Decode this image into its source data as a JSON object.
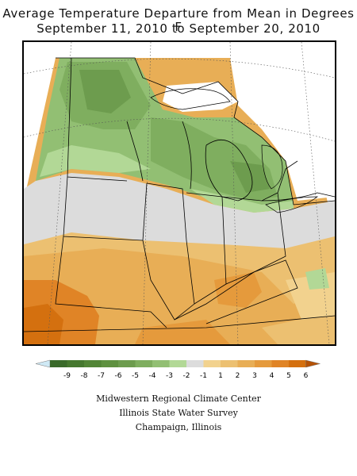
{
  "title": "Average Temperature Departure from Mean in Degrees F",
  "subtitle": "September 11, 2010 to September 20, 2010",
  "legend": {
    "low_color": "#cfe9f5",
    "high_color": "#b45206",
    "bins": [
      {
        "label": "-9",
        "color": "#3a6a2a"
      },
      {
        "label": "-8",
        "color": "#46782f"
      },
      {
        "label": "-7",
        "color": "#528536"
      },
      {
        "label": "-6",
        "color": "#5f9140"
      },
      {
        "label": "-5",
        "color": "#6d9c4e"
      },
      {
        "label": "-4",
        "color": "#7fae5f"
      },
      {
        "label": "-3",
        "color": "#92bf73"
      },
      {
        "label": "-2",
        "color": "#b2d896"
      },
      {
        "label": "-1",
        "color": "#dcdcdc"
      },
      {
        "label": "1",
        "color": "#f2d28e"
      },
      {
        "label": "2",
        "color": "#ecc071"
      },
      {
        "label": "3",
        "color": "#e8ae56"
      },
      {
        "label": "4",
        "color": "#e59a3c"
      },
      {
        "label": "5",
        "color": "#e08426"
      },
      {
        "label": "6",
        "color": "#d4700f"
      }
    ]
  },
  "credits": [
    "Midwestern Regional Climate Center",
    "Illinois State Water Survey",
    "Champaign, Illinois"
  ]
}
